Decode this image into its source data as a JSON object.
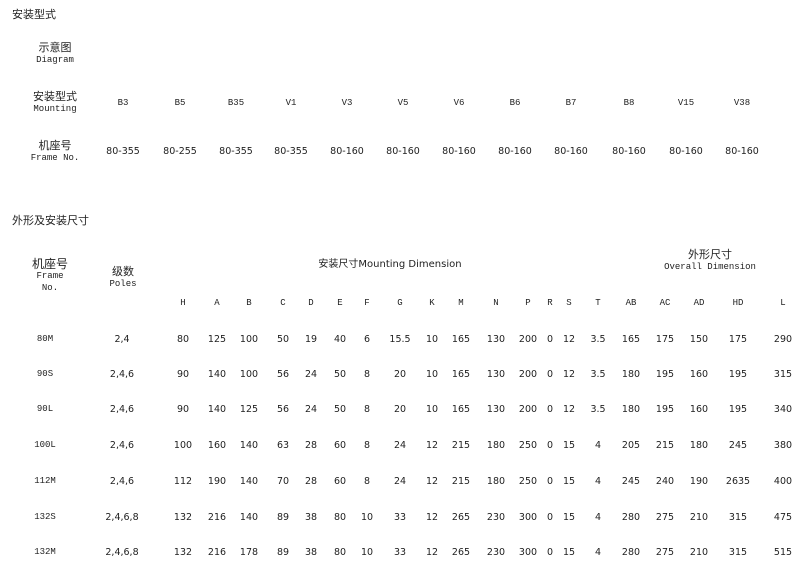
{
  "section1": {
    "title": "安装型式",
    "diagram_label": {
      "zh": "示意图",
      "en": "Diagram"
    },
    "mounting_label": {
      "zh": "安装型式",
      "en": "Mounting"
    },
    "frame_label": {
      "zh": "机座号",
      "en": "Frame No."
    },
    "mountings": [
      "B3",
      "B5",
      "B35",
      "V1",
      "V3",
      "V5",
      "V6",
      "B6",
      "B7",
      "B8",
      "V15",
      "V38"
    ],
    "frames": [
      "80-355",
      "80-255",
      "80-355",
      "80-355",
      "80-160",
      "80-160",
      "80-160",
      "80-160",
      "80-160",
      "80-160",
      "80-160",
      "80-160"
    ]
  },
  "section2": {
    "title": "外形及安装尺寸",
    "frame_header": {
      "zh": "机座号",
      "en1": "Frame",
      "en2": "No."
    },
    "poles_header": {
      "zh": "级数",
      "en": "Poles"
    },
    "mounting_dim_header": "安装尺寸Mounting Dimension",
    "overall_dim_header": {
      "zh": "外形尺寸",
      "en": "Overall Dimension"
    },
    "columns": [
      "H",
      "A",
      "B",
      "C",
      "D",
      "E",
      "F",
      "G",
      "K",
      "M",
      "N",
      "P",
      "R",
      "S",
      "T",
      "AB",
      "AC",
      "AD",
      "HD",
      "L"
    ],
    "rows": [
      {
        "frame": "80M",
        "poles": "2,4",
        "values": [
          "80",
          "125",
          "100",
          "50",
          "19",
          "40",
          "6",
          "15.5",
          "10",
          "165",
          "130",
          "200",
          "0",
          "12",
          "3.5",
          "165",
          "175",
          "150",
          "175",
          "290"
        ]
      },
      {
        "frame": "90S",
        "poles": "2,4,6",
        "values": [
          "90",
          "140",
          "100",
          "56",
          "24",
          "50",
          "8",
          "20",
          "10",
          "165",
          "130",
          "200",
          "0",
          "12",
          "3.5",
          "180",
          "195",
          "160",
          "195",
          "315"
        ]
      },
      {
        "frame": "90L",
        "poles": "2,4,6",
        "values": [
          "90",
          "140",
          "125",
          "56",
          "24",
          "50",
          "8",
          "20",
          "10",
          "165",
          "130",
          "200",
          "0",
          "12",
          "3.5",
          "180",
          "195",
          "160",
          "195",
          "340"
        ]
      },
      {
        "frame": "100L",
        "poles": "2,4,6",
        "values": [
          "100",
          "160",
          "140",
          "63",
          "28",
          "60",
          "8",
          "24",
          "12",
          "215",
          "180",
          "250",
          "0",
          "15",
          "4",
          "205",
          "215",
          "180",
          "245",
          "380"
        ]
      },
      {
        "frame": "112M",
        "poles": "2,4,6",
        "values": [
          "112",
          "190",
          "140",
          "70",
          "28",
          "60",
          "8",
          "24",
          "12",
          "215",
          "180",
          "250",
          "0",
          "15",
          "4",
          "245",
          "240",
          "190",
          "2635",
          "400"
        ]
      },
      {
        "frame": "132S",
        "poles": "2,4,6,8",
        "values": [
          "132",
          "216",
          "140",
          "89",
          "38",
          "80",
          "10",
          "33",
          "12",
          "265",
          "230",
          "300",
          "0",
          "15",
          "4",
          "280",
          "275",
          "210",
          "315",
          "475"
        ]
      },
      {
        "frame": "132M",
        "poles": "2,4,6,8",
        "values": [
          "132",
          "216",
          "178",
          "89",
          "38",
          "80",
          "10",
          "33",
          "12",
          "265",
          "230",
          "300",
          "0",
          "15",
          "4",
          "280",
          "275",
          "210",
          "315",
          "515"
        ]
      }
    ]
  }
}
